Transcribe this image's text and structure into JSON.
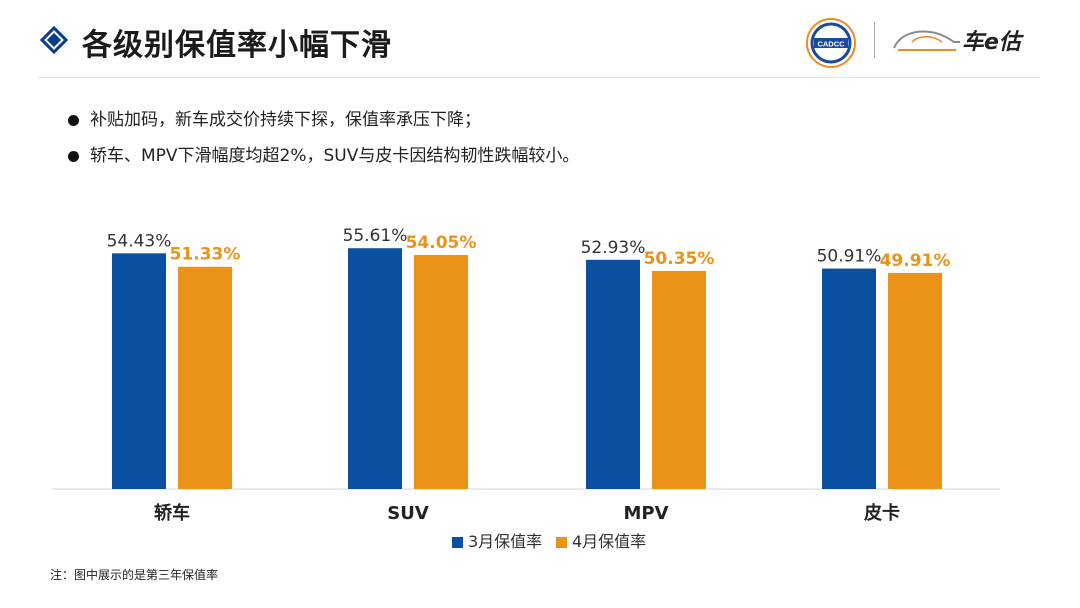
{
  "header": {
    "title": "各级别保值率小幅下滑",
    "logo_cadcc_text": "CADCC",
    "logo_brand_text": "车e估"
  },
  "bullets": [
    "补贴加码，新车成交价持续下探，保值率承压下降；",
    "轿车、MPV下滑幅度均超2%，SUV与皮卡因结构韧性跌幅较小。"
  ],
  "footnote": "注：图中展示的是第三年保值率",
  "colors": {
    "series_march": "#0a4fa0",
    "series_april": "#ea9318",
    "title_diamond": "#0b3d8f"
  },
  "chart_data": {
    "type": "bar",
    "categories": [
      "轿车",
      "SUV",
      "MPV",
      "皮卡"
    ],
    "series": [
      {
        "name": "3月保值率",
        "values": [
          54.43,
          55.61,
          52.93,
          50.91
        ],
        "labels": [
          "54.43%",
          "55.61%",
          "52.93%",
          "50.91%"
        ]
      },
      {
        "name": "4月保值率",
        "values": [
          51.33,
          54.05,
          50.35,
          49.91
        ],
        "labels": [
          "51.33%",
          "54.05%",
          "50.35%",
          "49.91%"
        ]
      }
    ],
    "ylim": [
      0,
      60
    ],
    "legend_position": "bottom",
    "grid": false
  }
}
